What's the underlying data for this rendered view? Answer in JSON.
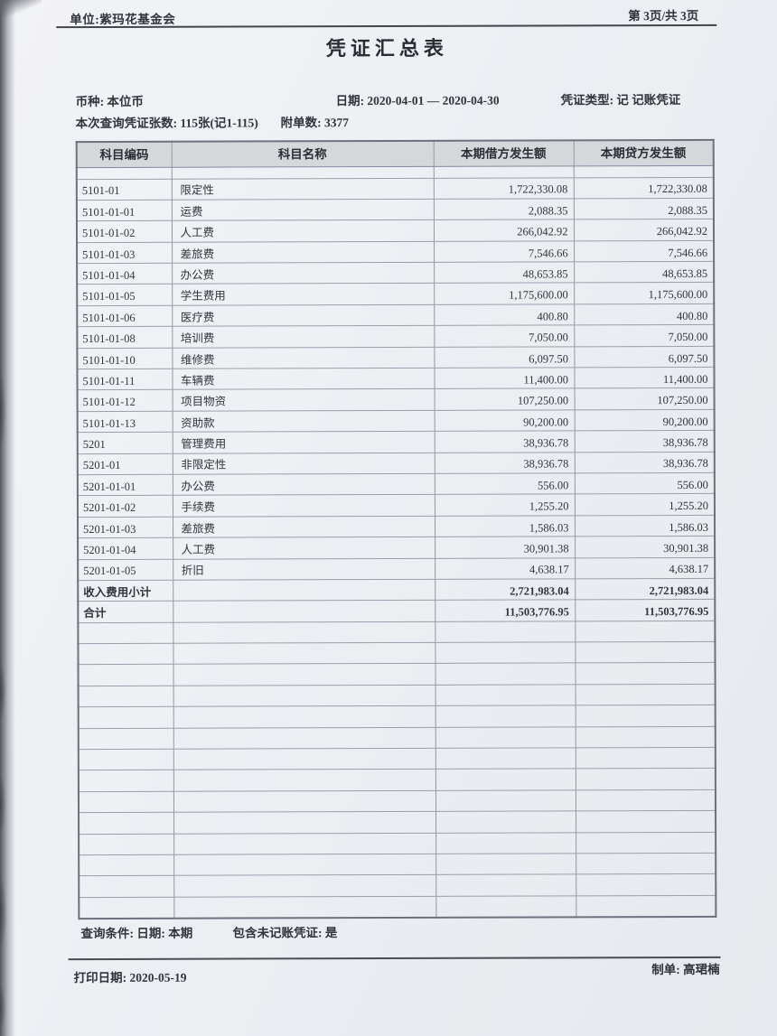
{
  "page": {
    "unit": "单位:紫玛花基金会",
    "page_number": "第 3页/共 3页",
    "title": "凭证汇总表"
  },
  "meta": {
    "currency": "币种: 本位币",
    "date_range": "日期: 2020-04-01 — 2020-04-30",
    "voucher_type": "凭证类型: 记 记账凭证",
    "query_count": "本次查询凭证张数: 115张(记1-115)",
    "attachment_count": "附单数: 3377"
  },
  "table": {
    "headers": [
      "科目编码",
      "科目名称",
      "本期借方发生额",
      "本期贷方发生额"
    ],
    "rows": [
      {
        "code": "5101-01",
        "name": "限定性",
        "debit": "1,722,330.08",
        "credit": "1,722,330.08",
        "sum": false
      },
      {
        "code": "5101-01-01",
        "name": "运费",
        "debit": "2,088.35",
        "credit": "2,088.35",
        "sum": false
      },
      {
        "code": "5101-01-02",
        "name": "人工费",
        "debit": "266,042.92",
        "credit": "266,042.92",
        "sum": false
      },
      {
        "code": "5101-01-03",
        "name": "差旅费",
        "debit": "7,546.66",
        "credit": "7,546.66",
        "sum": false
      },
      {
        "code": "5101-01-04",
        "name": "办公费",
        "debit": "48,653.85",
        "credit": "48,653.85",
        "sum": false
      },
      {
        "code": "5101-01-05",
        "name": "学生费用",
        "debit": "1,175,600.00",
        "credit": "1,175,600.00",
        "sum": false
      },
      {
        "code": "5101-01-06",
        "name": "医疗费",
        "debit": "400.80",
        "credit": "400.80",
        "sum": false
      },
      {
        "code": "5101-01-08",
        "name": "培训费",
        "debit": "7,050.00",
        "credit": "7,050.00",
        "sum": false
      },
      {
        "code": "5101-01-10",
        "name": "维修费",
        "debit": "6,097.50",
        "credit": "6,097.50",
        "sum": false
      },
      {
        "code": "5101-01-11",
        "name": "车辆费",
        "debit": "11,400.00",
        "credit": "11,400.00",
        "sum": false
      },
      {
        "code": "5101-01-12",
        "name": "项目物资",
        "debit": "107,250.00",
        "credit": "107,250.00",
        "sum": false
      },
      {
        "code": "5101-01-13",
        "name": "资助款",
        "debit": "90,200.00",
        "credit": "90,200.00",
        "sum": false
      },
      {
        "code": "5201",
        "name": "管理费用",
        "debit": "38,936.78",
        "credit": "38,936.78",
        "sum": false
      },
      {
        "code": "5201-01",
        "name": "非限定性",
        "debit": "38,936.78",
        "credit": "38,936.78",
        "sum": false
      },
      {
        "code": "5201-01-01",
        "name": "办公费",
        "debit": "556.00",
        "credit": "556.00",
        "sum": false
      },
      {
        "code": "5201-01-02",
        "name": "手续费",
        "debit": "1,255.20",
        "credit": "1,255.20",
        "sum": false
      },
      {
        "code": "5201-01-03",
        "name": "差旅费",
        "debit": "1,586.03",
        "credit": "1,586.03",
        "sum": false
      },
      {
        "code": "5201-01-04",
        "name": "人工费",
        "debit": "30,901.38",
        "credit": "30,901.38",
        "sum": false
      },
      {
        "code": "5201-01-05",
        "name": "折旧",
        "debit": "4,638.17",
        "credit": "4,638.17",
        "sum": false
      },
      {
        "code": "收入费用小计",
        "name": "",
        "debit": "2,721,983.04",
        "credit": "2,721,983.04",
        "sum": true
      },
      {
        "code": "合计",
        "name": "",
        "debit": "11,503,776.95",
        "credit": "11,503,776.95",
        "sum": true
      }
    ],
    "empty_row_count": 14
  },
  "footer": {
    "query_condition": "查询条件: 日期: 本期",
    "include_unposted": "包含未记账凭证: 是",
    "print_date": "打印日期: 2020-05-19",
    "preparer": "制单: 高珺楠"
  }
}
